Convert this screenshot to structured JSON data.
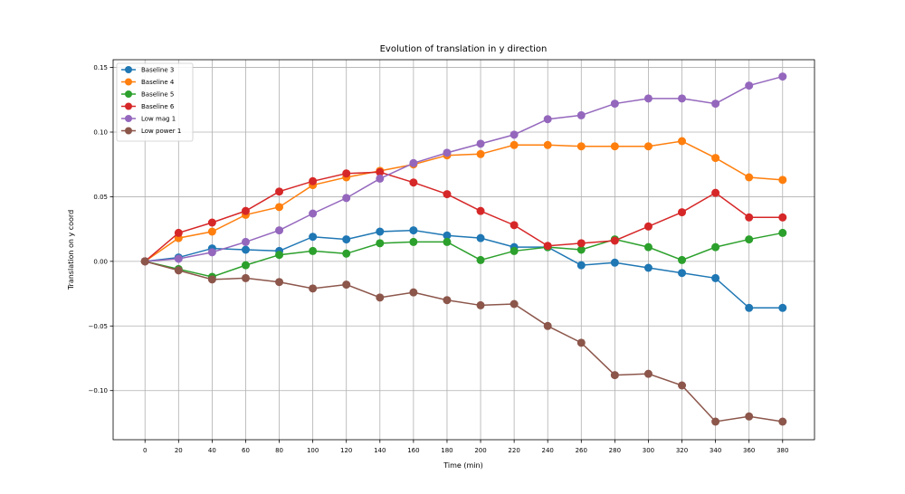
{
  "chart_data": {
    "type": "line",
    "title": "Evolution of translation in y direction",
    "xlabel": "Time (min)",
    "ylabel": "Translation on y coord",
    "x": [
      0,
      20,
      40,
      60,
      80,
      100,
      120,
      140,
      160,
      180,
      200,
      220,
      240,
      260,
      280,
      300,
      320,
      340,
      360,
      380
    ],
    "x_ticks": [
      "0",
      "20",
      "40",
      "60",
      "80",
      "100",
      "120",
      "140",
      "160",
      "180",
      "200",
      "220",
      "240",
      "260",
      "280",
      "300",
      "320",
      "340",
      "360",
      "380"
    ],
    "y_ticks": [
      -0.1,
      -0.05,
      0.0,
      0.05,
      0.1,
      0.15
    ],
    "y_tick_labels": [
      "−0.10",
      "−0.05",
      "0.00",
      "0.05",
      "0.10",
      "0.15"
    ],
    "xlim": [
      -19,
      399
    ],
    "ylim": [
      -0.138,
      0.156
    ],
    "grid": true,
    "legend_position": "top-left",
    "series": [
      {
        "name": "Baseline 3",
        "color": "#1f77b4",
        "values": [
          0.0,
          0.003,
          0.01,
          0.009,
          0.008,
          0.019,
          0.017,
          0.023,
          0.024,
          0.02,
          0.018,
          0.011,
          0.011,
          -0.003,
          -0.001,
          -0.005,
          -0.009,
          -0.013,
          -0.036,
          -0.036
        ]
      },
      {
        "name": "Baseline 4",
        "color": "#ff7f0e",
        "values": [
          0.0,
          0.018,
          0.023,
          0.036,
          0.042,
          0.059,
          0.065,
          0.07,
          0.075,
          0.082,
          0.083,
          0.09,
          0.09,
          0.089,
          0.089,
          0.089,
          0.093,
          0.08,
          0.065,
          0.063
        ]
      },
      {
        "name": "Baseline 5",
        "color": "#2ca02c",
        "values": [
          0.0,
          -0.006,
          -0.012,
          -0.003,
          0.005,
          0.008,
          0.006,
          0.014,
          0.015,
          0.015,
          0.001,
          0.008,
          0.011,
          0.009,
          0.017,
          0.011,
          0.001,
          0.011,
          0.017,
          0.022
        ]
      },
      {
        "name": "Baseline 6",
        "color": "#d62728",
        "values": [
          0.0,
          0.022,
          0.03,
          0.039,
          0.054,
          0.062,
          0.068,
          0.069,
          0.061,
          0.052,
          0.039,
          0.028,
          0.012,
          0.014,
          0.016,
          0.027,
          0.038,
          0.053,
          0.034,
          0.034
        ]
      },
      {
        "name": "Low mag 1",
        "color": "#9467bd",
        "values": [
          0.0,
          0.002,
          0.007,
          0.015,
          0.024,
          0.037,
          0.049,
          0.064,
          0.076,
          0.084,
          0.091,
          0.098,
          0.11,
          0.113,
          0.122,
          0.126,
          0.126,
          0.122,
          0.136,
          0.143
        ]
      },
      {
        "name": "Low power 1",
        "color": "#8c564b",
        "values": [
          0.0,
          -0.007,
          -0.014,
          -0.013,
          -0.016,
          -0.021,
          -0.018,
          -0.028,
          -0.024,
          -0.03,
          -0.034,
          -0.033,
          -0.05,
          -0.063,
          -0.088,
          -0.087,
          -0.096,
          -0.124,
          -0.12,
          -0.124
        ]
      }
    ]
  }
}
